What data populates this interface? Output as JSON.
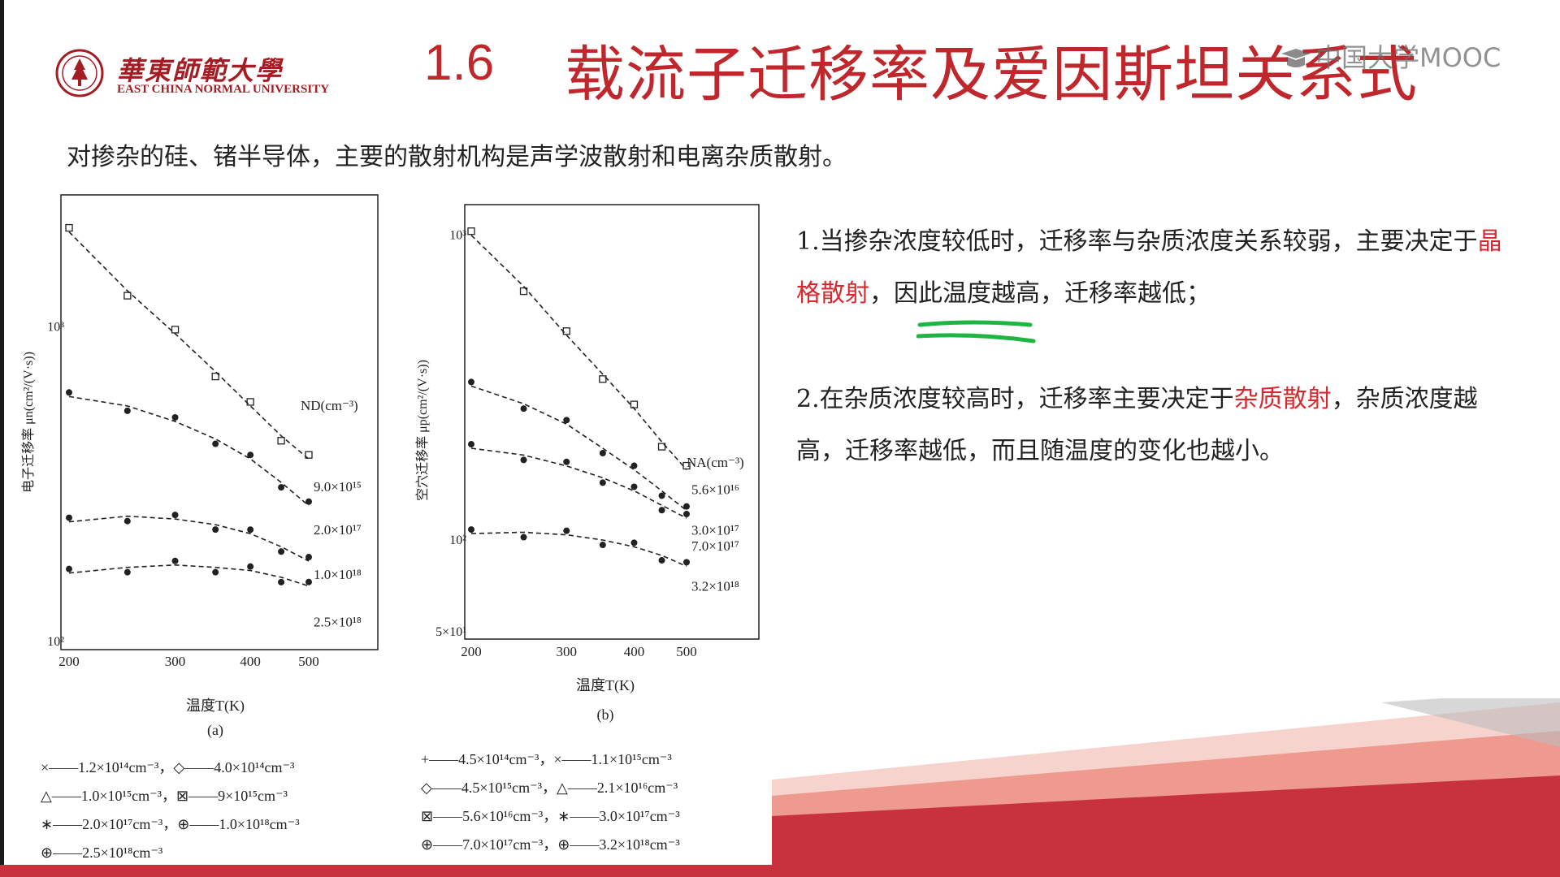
{
  "header": {
    "university_cn": "華東師範大學",
    "university_en": "EAST CHINA NORMAL UNIVERSITY",
    "section_number": "1.6",
    "title": "载流子迁移率及爱因斯坦关系式",
    "watermark": "中国大学MOOC"
  },
  "intro_text": "对掺杂的硅、锗半导体，主要的散射机构是声学波散射和电离杂质散射。",
  "points": [
    {
      "pre": "1.当掺杂浓度较低时，迁移率与杂质浓度关系较弱，主要决定于",
      "highlight": "晶格散射",
      "post": "，因此温度越高，迁移率越低；"
    },
    {
      "pre": "2.在杂质浓度较高时，迁移率主要决定于",
      "highlight": "杂质散射",
      "post": "，杂质浓度越高，迁移率越低，而且随温度的变化也越小。"
    }
  ],
  "colors": {
    "title_red": "#c0272d",
    "highlight_red": "#d8282f",
    "underline_green": "#1fb543",
    "deco_red": "#c8323c"
  },
  "chart_data": [
    {
      "type": "scatter",
      "caption": "(a)",
      "xlabel": "温度T(K)",
      "ylabel": "电子迁移率 μn(cm²/(V·s))",
      "x_ticks": [
        "200",
        "300",
        "400",
        "500"
      ],
      "y_ticks": [
        "10³",
        "10²"
      ],
      "series_title": "ND(cm⁻³)",
      "scale": "log-log",
      "series": [
        {
          "name": "9.0×10¹⁵",
          "x": [
            200,
            250,
            300,
            350,
            400,
            450,
            500
          ],
          "y": [
            2000,
            1300,
            950,
            720,
            560,
            450,
            380
          ]
        },
        {
          "name": "2.0×10¹⁷",
          "x": [
            200,
            250,
            300,
            350,
            400,
            450,
            500
          ],
          "y": [
            600,
            560,
            500,
            440,
            380,
            320,
            270
          ]
        },
        {
          "name": "1.0×10¹⁸",
          "x": [
            200,
            250,
            300,
            350,
            400,
            450,
            500
          ],
          "y": [
            240,
            250,
            245,
            235,
            220,
            200,
            180
          ]
        },
        {
          "name": "2.5×10¹⁸",
          "x": [
            200,
            250,
            300,
            350,
            400,
            450,
            500
          ],
          "y": [
            165,
            172,
            175,
            172,
            168,
            160,
            150
          ]
        }
      ],
      "legend": [
        "×——1.2×10¹⁴cm⁻³，◇——4.0×10¹⁴cm⁻³",
        "△——1.0×10¹⁵cm⁻³，⊠——9×10¹⁵cm⁻³",
        "∗——2.0×10¹⁷cm⁻³，⊕——1.0×10¹⁸cm⁻³",
        "⊕——2.5×10¹⁸cm⁻³"
      ]
    },
    {
      "type": "scatter",
      "caption": "(b)",
      "xlabel": "温度T(K)",
      "ylabel": "空穴迁移率 μp(cm²/(V·s))",
      "x_ticks": [
        "200",
        "300",
        "400",
        "500"
      ],
      "y_ticks": [
        "10³",
        "10²",
        "5×10¹"
      ],
      "series_title": "NA(cm⁻³)",
      "scale": "log-log",
      "series": [
        {
          "name": "5.6×10¹⁶",
          "x": [
            200,
            250,
            300,
            350,
            400,
            450,
            500
          ],
          "y": [
            1000,
            680,
            470,
            350,
            270,
            210,
            170
          ]
        },
        {
          "name": "3.0×10¹⁷",
          "x": [
            200,
            250,
            300,
            350,
            400,
            450,
            500
          ],
          "y": [
            320,
            280,
            240,
            200,
            170,
            145,
            125
          ]
        },
        {
          "name": "7.0×10¹⁷",
          "x": [
            200,
            250,
            300,
            350,
            400,
            450,
            500
          ],
          "y": [
            200,
            190,
            175,
            160,
            145,
            130,
            118
          ]
        },
        {
          "name": "3.2×10¹⁸",
          "x": [
            200,
            250,
            300,
            350,
            400,
            450,
            500
          ],
          "y": [
            105,
            106,
            104,
            100,
            95,
            89,
            82
          ]
        }
      ],
      "legend": [
        "+——4.5×10¹⁴cm⁻³，×——1.1×10¹⁵cm⁻³",
        "◇——4.5×10¹⁵cm⁻³，△——2.1×10¹⁶cm⁻³",
        "⊠——5.6×10¹⁶cm⁻³，∗——3.0×10¹⁷cm⁻³",
        "⊕——7.0×10¹⁷cm⁻³，⊕——3.2×10¹⁸cm⁻³"
      ]
    }
  ]
}
